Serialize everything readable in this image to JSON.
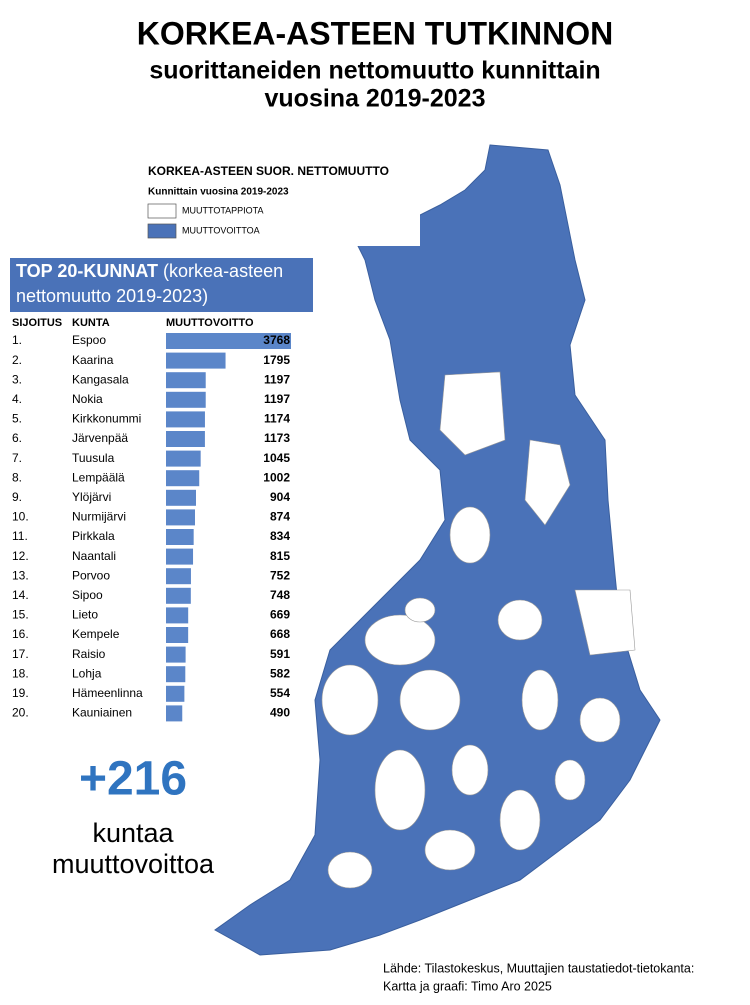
{
  "header": {
    "title": "KORKEA-ASTEEN TUTKINNON",
    "subtitle_line1": "suorittaneiden nettomuutto kunnittain",
    "subtitle_line2": "vuosina 2019-2023"
  },
  "legend": {
    "title": "KORKEA-ASTEEN SUOR. NETTOMUUTTO",
    "subtitle": "Kunnittain vuosina 2019-2023",
    "items": [
      {
        "label": "MUUTTOTAPPIOTA",
        "color": "#ffffff"
      },
      {
        "label": "MUUTTOVOITTOA",
        "color": "#4a72b8"
      }
    ]
  },
  "table": {
    "title_bold": "TOP 20-KUNNAT",
    "title_rest": "(korkea-asteen nettomuutto 2019-2023)",
    "headers": [
      "SIJOITUS",
      "KUNTA",
      "MUUTTOVOITTO"
    ],
    "bar_color": "#5b86c9",
    "rows": [
      [
        "1.",
        "Espoo",
        3768
      ],
      [
        "2.",
        "Kaarina",
        1795
      ],
      [
        "3.",
        "Kangasala",
        1197
      ],
      [
        "4.",
        "Nokia",
        1197
      ],
      [
        "5.",
        "Kirkkonummi",
        1174
      ],
      [
        "6.",
        "Järvenpää",
        1173
      ],
      [
        "7.",
        "Tuusula",
        1045
      ],
      [
        "8.",
        "Lempäälä",
        1002
      ],
      [
        "9.",
        "Ylöjärvi",
        904
      ],
      [
        "10.",
        "Nurmijärvi",
        874
      ],
      [
        "11.",
        "Pirkkala",
        834
      ],
      [
        "12.",
        "Naantali",
        815
      ],
      [
        "13.",
        "Porvoo",
        752
      ],
      [
        "14.",
        "Sipoo",
        748
      ],
      [
        "15.",
        "Lieto",
        669
      ],
      [
        "16.",
        "Kempele",
        668
      ],
      [
        "17.",
        "Raisio",
        591
      ],
      [
        "18.",
        "Lohja",
        582
      ],
      [
        "19.",
        "Hämeenlinna",
        554
      ],
      [
        "20.",
        "Kauniainen",
        490
      ]
    ]
  },
  "stat": {
    "value": "+216",
    "line1": "kuntaa",
    "line2": "muuttovoittoa"
  },
  "source": {
    "line1": "Lähde: Tilastokeskus, Muuttajien taustatiedot-tietokanta:",
    "line2": "Kartta ja graafi: Timo Aro 2025"
  }
}
